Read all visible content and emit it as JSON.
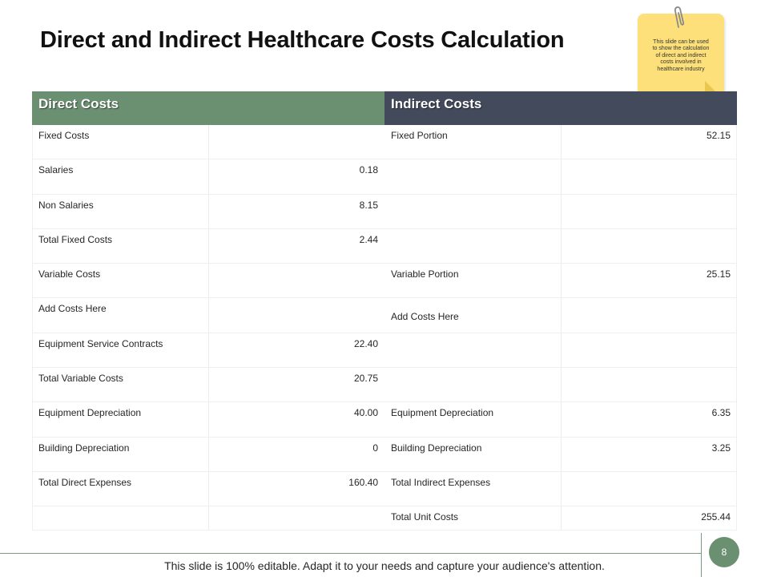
{
  "slide": {
    "title": "Direct and Indirect Healthcare Costs Calculation",
    "note": "This slide can be used to show the calculation of direct and indirect costs involved in healthcare industry",
    "footer": "This slide is 100% editable. Adapt it to your needs and capture your audience's attention.",
    "page_number": "8"
  },
  "table": {
    "headers": {
      "direct": "Direct Costs",
      "indirect": "Indirect Costs"
    },
    "rows": [
      {
        "d_label": "Fixed Costs",
        "d_value": "",
        "i_label": "Fixed Portion",
        "i_value": "52.15"
      },
      {
        "d_label": "Salaries",
        "d_value": "0.18",
        "i_label": "",
        "i_value": ""
      },
      {
        "d_label": "Non Salaries",
        "d_value": "8.15",
        "i_label": "",
        "i_value": ""
      },
      {
        "d_label": "Total Fixed Costs",
        "d_value": "2.44",
        "i_label": "",
        "i_value": ""
      },
      {
        "d_label": "Variable Costs",
        "d_value": "",
        "i_label": "Variable Portion",
        "i_value": "25.15"
      },
      {
        "d_label": "Add Costs Here",
        "d_value": "",
        "i_label": "Add Costs Here",
        "i_value": ""
      },
      {
        "d_label": "Equipment Service Contracts",
        "d_value": "22.40",
        "i_label": "",
        "i_value": ""
      },
      {
        "d_label": "Total Variable Costs",
        "d_value": "20.75",
        "i_label": "",
        "i_value": ""
      },
      {
        "d_label": "Equipment Depreciation",
        "d_value": "40.00",
        "i_label": "Equipment Depreciation",
        "i_value": "6.35"
      },
      {
        "d_label": "Building Depreciation",
        "d_value": "0",
        "i_label": "Building Depreciation",
        "i_value": "3.25"
      },
      {
        "d_label": "Total Direct Expenses",
        "d_value": "160.40",
        "i_label": "Total Indirect Expenses",
        "i_value": ""
      },
      {
        "d_label": "",
        "d_value": "",
        "i_label": "Total Unit Costs",
        "i_value": "255.44"
      }
    ]
  },
  "colors": {
    "direct_header": "#6b8f71",
    "indirect_header": "#434a5c",
    "note_bg": "#fde07a"
  }
}
